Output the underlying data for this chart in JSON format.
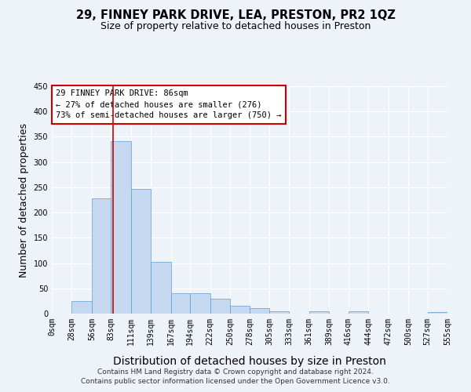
{
  "title": "29, FINNEY PARK DRIVE, LEA, PRESTON, PR2 1QZ",
  "subtitle": "Size of property relative to detached houses in Preston",
  "xlabel": "Distribution of detached houses by size in Preston",
  "ylabel": "Number of detached properties",
  "bin_labels": [
    "0sqm",
    "28sqm",
    "56sqm",
    "83sqm",
    "111sqm",
    "139sqm",
    "167sqm",
    "194sqm",
    "222sqm",
    "250sqm",
    "278sqm",
    "305sqm",
    "333sqm",
    "361sqm",
    "389sqm",
    "416sqm",
    "444sqm",
    "472sqm",
    "500sqm",
    "527sqm",
    "555sqm"
  ],
  "bar_values": [
    0,
    25,
    228,
    342,
    247,
    103,
    41,
    41,
    30,
    15,
    11,
    5,
    0,
    4,
    0,
    4,
    0,
    0,
    0,
    3
  ],
  "bar_color": "#c5d8f0",
  "bar_edge_color": "#5a9fd4",
  "property_line_x": 86,
  "bin_edges": [
    0,
    28,
    56,
    83,
    111,
    139,
    167,
    194,
    222,
    250,
    278,
    305,
    333,
    361,
    389,
    416,
    444,
    472,
    500,
    527,
    555
  ],
  "ylim": [
    0,
    450
  ],
  "annotation_title": "29 FINNEY PARK DRIVE: 86sqm",
  "annotation_line1": "← 27% of detached houses are smaller (276)",
  "annotation_line2": "73% of semi-detached houses are larger (750) →",
  "annotation_box_color": "#ffffff",
  "annotation_border_color": "#cc0000",
  "vline_color": "#cc0000",
  "footer_line1": "Contains HM Land Registry data © Crown copyright and database right 2024.",
  "footer_line2": "Contains public sector information licensed under the Open Government Licence v3.0.",
  "bg_color": "#eef2f9",
  "grid_color": "#ffffff",
  "title_fontsize": 10.5,
  "subtitle_fontsize": 9,
  "axis_label_fontsize": 9,
  "tick_fontsize": 7,
  "footer_fontsize": 6.5
}
